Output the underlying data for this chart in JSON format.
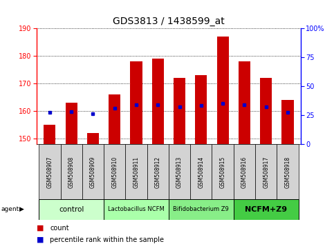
{
  "title": "GDS3813 / 1438599_at",
  "samples": [
    "GSM508907",
    "GSM508908",
    "GSM508909",
    "GSM508910",
    "GSM508911",
    "GSM508912",
    "GSM508913",
    "GSM508914",
    "GSM508915",
    "GSM508916",
    "GSM508917",
    "GSM508918"
  ],
  "count_values": [
    155,
    163,
    152,
    166,
    178,
    179,
    172,
    173,
    187,
    178,
    172,
    164
  ],
  "percentile_values": [
    27,
    28,
    26,
    31,
    34,
    34,
    32,
    33,
    35,
    34,
    32,
    27
  ],
  "ylim_left": [
    148,
    190
  ],
  "ylim_right": [
    0,
    100
  ],
  "yticks_left": [
    150,
    160,
    170,
    180,
    190
  ],
  "yticks_right": [
    0,
    25,
    50,
    75,
    100
  ],
  "bar_color": "#cc0000",
  "dot_color": "#0000cc",
  "bar_width": 0.55,
  "agent_groups": [
    {
      "label": "control",
      "start": 0,
      "end": 3,
      "color": "#ccffcc"
    },
    {
      "label": "Lactobacillus NCFM",
      "start": 3,
      "end": 6,
      "color": "#aaffaa"
    },
    {
      "label": "Bifidobacterium Z9",
      "start": 6,
      "end": 9,
      "color": "#88ee88"
    },
    {
      "label": "NCFM+Z9",
      "start": 9,
      "end": 12,
      "color": "#44cc44"
    }
  ],
  "baseline": 148,
  "ytick_fontsize": 7,
  "label_fontsize": 5.5,
  "title_fontsize": 10
}
